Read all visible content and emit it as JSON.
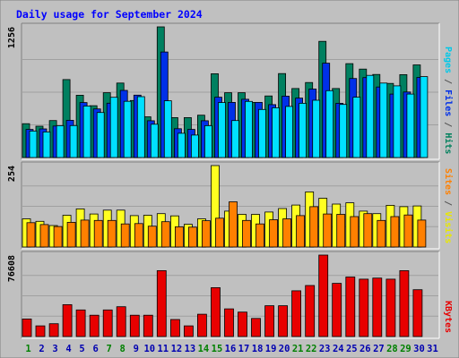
{
  "chart_data": {
    "type": "bar",
    "title": "Daily usage for September 2024",
    "categories": [
      "1",
      "2",
      "3",
      "4",
      "5",
      "6",
      "7",
      "8",
      "9",
      "10",
      "11",
      "12",
      "13",
      "14",
      "15",
      "16",
      "17",
      "18",
      "19",
      "20",
      "21",
      "22",
      "23",
      "24",
      "25",
      "26",
      "27",
      "28",
      "29",
      "30",
      "31"
    ],
    "weekend_days": [
      "1",
      "7",
      "8",
      "14",
      "15",
      "21",
      "22",
      "28",
      "29"
    ],
    "panels": [
      {
        "id": "hits",
        "ylabel_parts": [
          {
            "text": "Pages",
            "color": "#00c8e8"
          },
          {
            "text": " / ",
            "color": "#555555"
          },
          {
            "text": "Files",
            "color": "#0030e8"
          },
          {
            "text": " / ",
            "color": "#555555"
          },
          {
            "text": "Hits",
            "color": "#00805c"
          }
        ],
        "ymax_label": "1256",
        "ylim": [
          0,
          1256
        ],
        "series": [
          {
            "name": "Hits",
            "color": "#008060",
            "values": [
              325,
              301,
              355,
              749,
              599,
              498,
              623,
              716,
              548,
              391,
              1256,
              384,
              384,
              407,
              805,
              623,
              623,
              530,
              592,
              807,
              663,
              721,
              1117,
              663,
              902,
              850,
              798,
              712,
              797,
              890,
              0
            ]
          },
          {
            "name": "Files",
            "color": "#0030e8",
            "values": [
              270,
              275,
              303,
              358,
              528,
              467,
              522,
              645,
              600,
              354,
              1014,
              277,
              270,
              354,
              580,
              530,
              560,
              530,
              508,
              590,
              571,
              658,
              907,
              521,
              760,
              768,
              678,
              610,
              630,
              770,
              0
            ]
          },
          {
            "name": "Pages",
            "color": "#00e0ff",
            "values": [
              255,
              246,
              306,
              307,
              495,
              433,
              579,
              540,
              585,
              320,
              545,
              233,
              216,
              306,
              528,
              355,
              539,
              462,
              478,
              491,
              521,
              551,
              643,
              510,
              580,
              790,
              716,
              689,
              610,
              778,
              0
            ]
          }
        ]
      },
      {
        "id": "visits",
        "ylabel_parts": [
          {
            "text": "Sites",
            "color": "#ff8000"
          },
          {
            "text": " / ",
            "color": "#555555"
          },
          {
            "text": "Visits",
            "color": "#e8e800"
          }
        ],
        "ymax_label": "254",
        "ylim": [
          0,
          254
        ],
        "series": [
          {
            "name": "Visits",
            "color": "#ffff20",
            "values": [
              88,
              80,
              67,
              99,
              119,
              103,
              115,
              115,
              98,
              99,
              104,
              97,
              71,
              88,
              254,
              112,
              102,
              102,
              109,
              120,
              131,
              172,
              152,
              134,
              138,
              112,
              104,
              130,
              126,
              128,
              0
            ]
          },
          {
            "name": "Sites",
            "color": "#ff8000",
            "values": [
              76,
              70,
              64,
              77,
              84,
              83,
              83,
              72,
              73,
              65,
              79,
              63,
              62,
              82,
              90,
              141,
              83,
              72,
              85,
              88,
              98,
              126,
              103,
              102,
              95,
              104,
              83,
              95,
              100,
              84,
              0
            ]
          }
        ]
      },
      {
        "id": "kbytes",
        "ylabel_parts": [
          {
            "text": "KBytes",
            "color": "#e80000"
          }
        ],
        "ymax_label": "76608",
        "ylim": [
          0,
          76608
        ],
        "series": [
          {
            "name": "KBytes",
            "color": "#e80000",
            "values": [
              16500,
              10000,
              12000,
              30000,
              25000,
              20000,
              25000,
              28000,
              20000,
              20000,
              62000,
              16000,
              10000,
              21000,
              46000,
              26000,
              23000,
              17000,
              29000,
              29000,
              43000,
              48000,
              76608,
              50000,
              56000,
              54000,
              55000,
              54000,
              62000,
              44000,
              0
            ]
          }
        ]
      }
    ],
    "colors": {
      "background": "#c0c0c0",
      "frame": "#ffffff",
      "title": "#0000ff",
      "day_normal": "#0000b0",
      "day_weekend": "#008000",
      "grid": "#a0a0a0",
      "tick_label": "#000000"
    }
  }
}
